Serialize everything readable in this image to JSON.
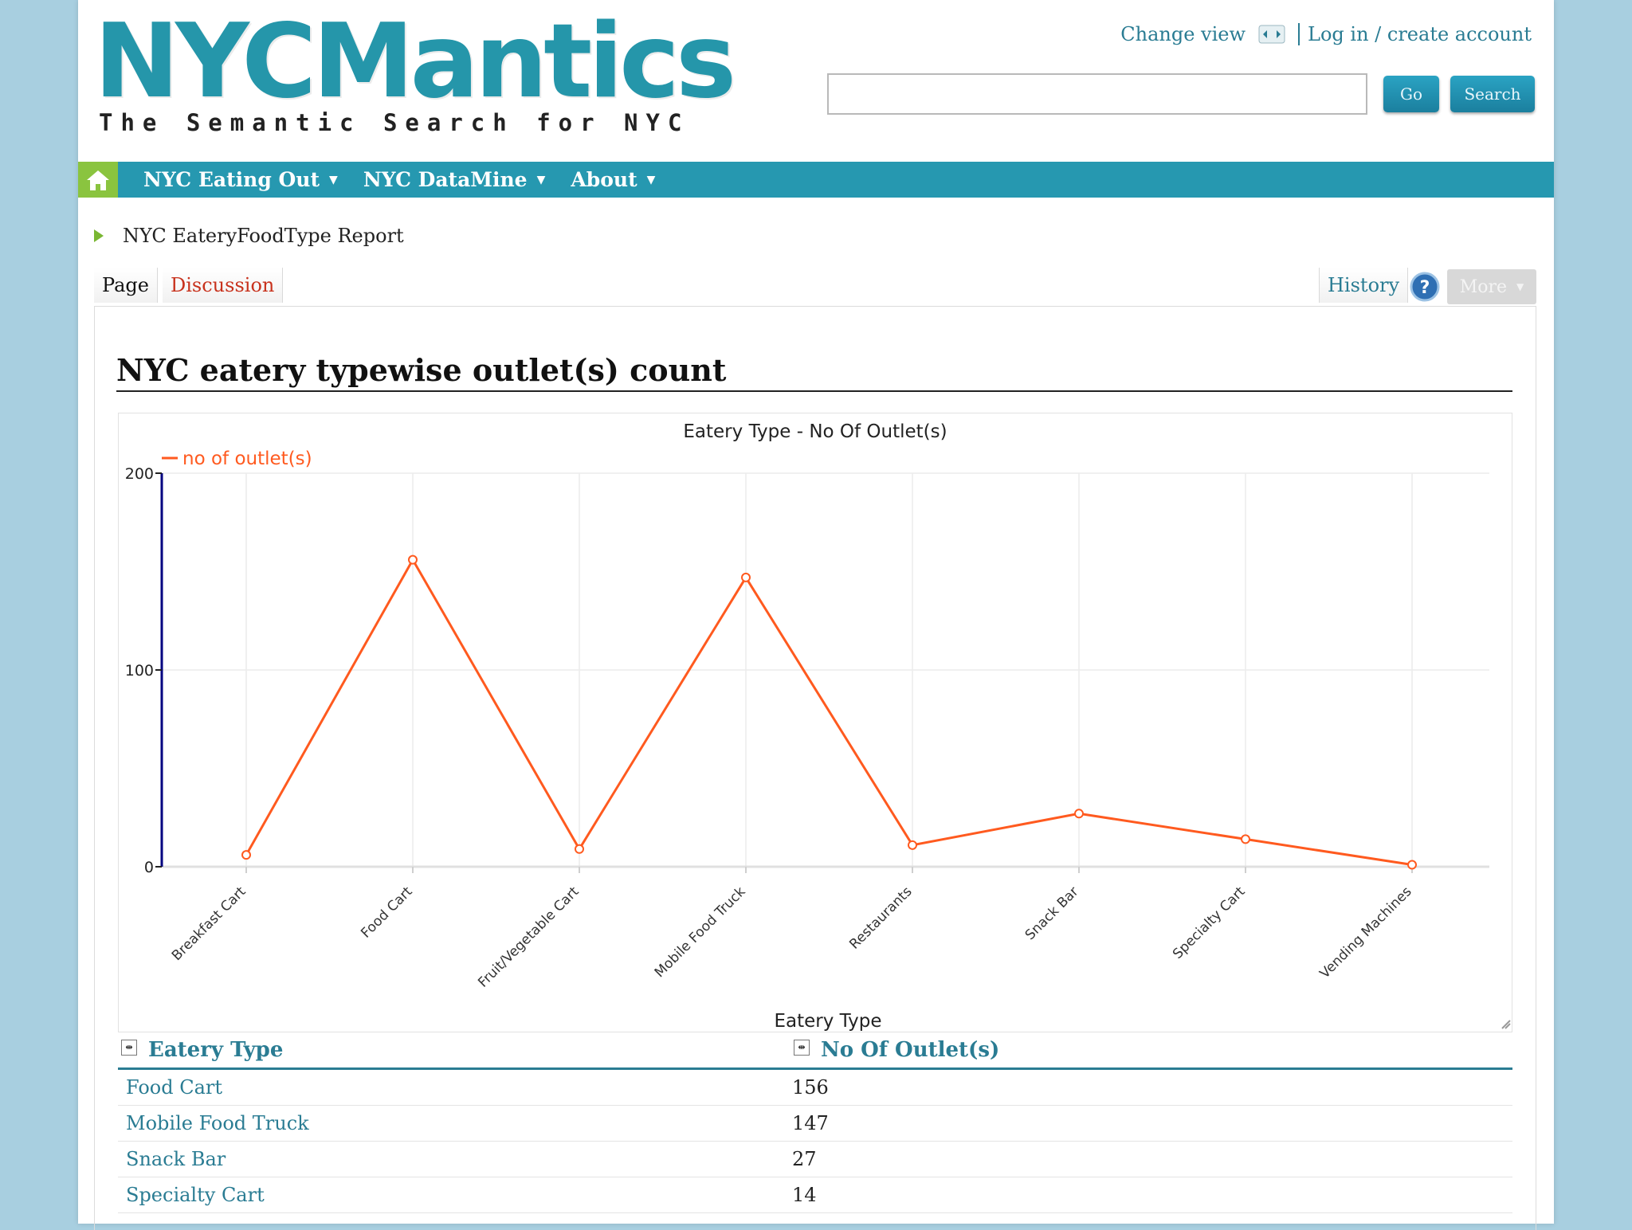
{
  "site": {
    "logo": "NYCMantics",
    "tagline": "The Semantic Search for NYC"
  },
  "top_links": {
    "change_view": "Change view",
    "login": "Log in / create account"
  },
  "search": {
    "value": "",
    "go_label": "Go",
    "search_label": "Search"
  },
  "nav": {
    "items": [
      {
        "label": "NYC Eating Out"
      },
      {
        "label": "NYC DataMine"
      },
      {
        "label": "About"
      }
    ]
  },
  "breadcrumb": "NYC EateryFoodType Report",
  "tabs": {
    "page": "Page",
    "discussion": "Discussion",
    "history": "History",
    "more": "More"
  },
  "page_title": "NYC eatery typewise outlet(s) count",
  "colors": {
    "brand": "#2596aa",
    "nav": "#2698b0",
    "home": "#8ac43f",
    "series": "#ff5a1f",
    "y_axis": "#000080"
  },
  "chart_data": {
    "type": "line",
    "title": "Eatery Type - No Of Outlet(s)",
    "xlabel": "Eatery Type",
    "ylabel": "",
    "ylim": [
      0,
      200
    ],
    "yticks": [
      0,
      100,
      200
    ],
    "grid": true,
    "legend_position": "top-left",
    "categories": [
      "Breakfast Cart",
      "Food Cart",
      "Fruit/Vegetable Cart",
      "Mobile Food Truck",
      "Restaurants",
      "Snack Bar",
      "Specialty Cart",
      "Vending Machines"
    ],
    "series": [
      {
        "name": "no of outlet(s)",
        "values": [
          6,
          156,
          9,
          147,
          11,
          27,
          14,
          1
        ]
      }
    ]
  },
  "table": {
    "headers": [
      "Eatery Type",
      "No Of Outlet(s)"
    ],
    "rows": [
      {
        "type": "Food Cart",
        "count": "156"
      },
      {
        "type": "Mobile Food Truck",
        "count": "147"
      },
      {
        "type": "Snack Bar",
        "count": "27"
      },
      {
        "type": "Specialty Cart",
        "count": "14"
      }
    ]
  }
}
